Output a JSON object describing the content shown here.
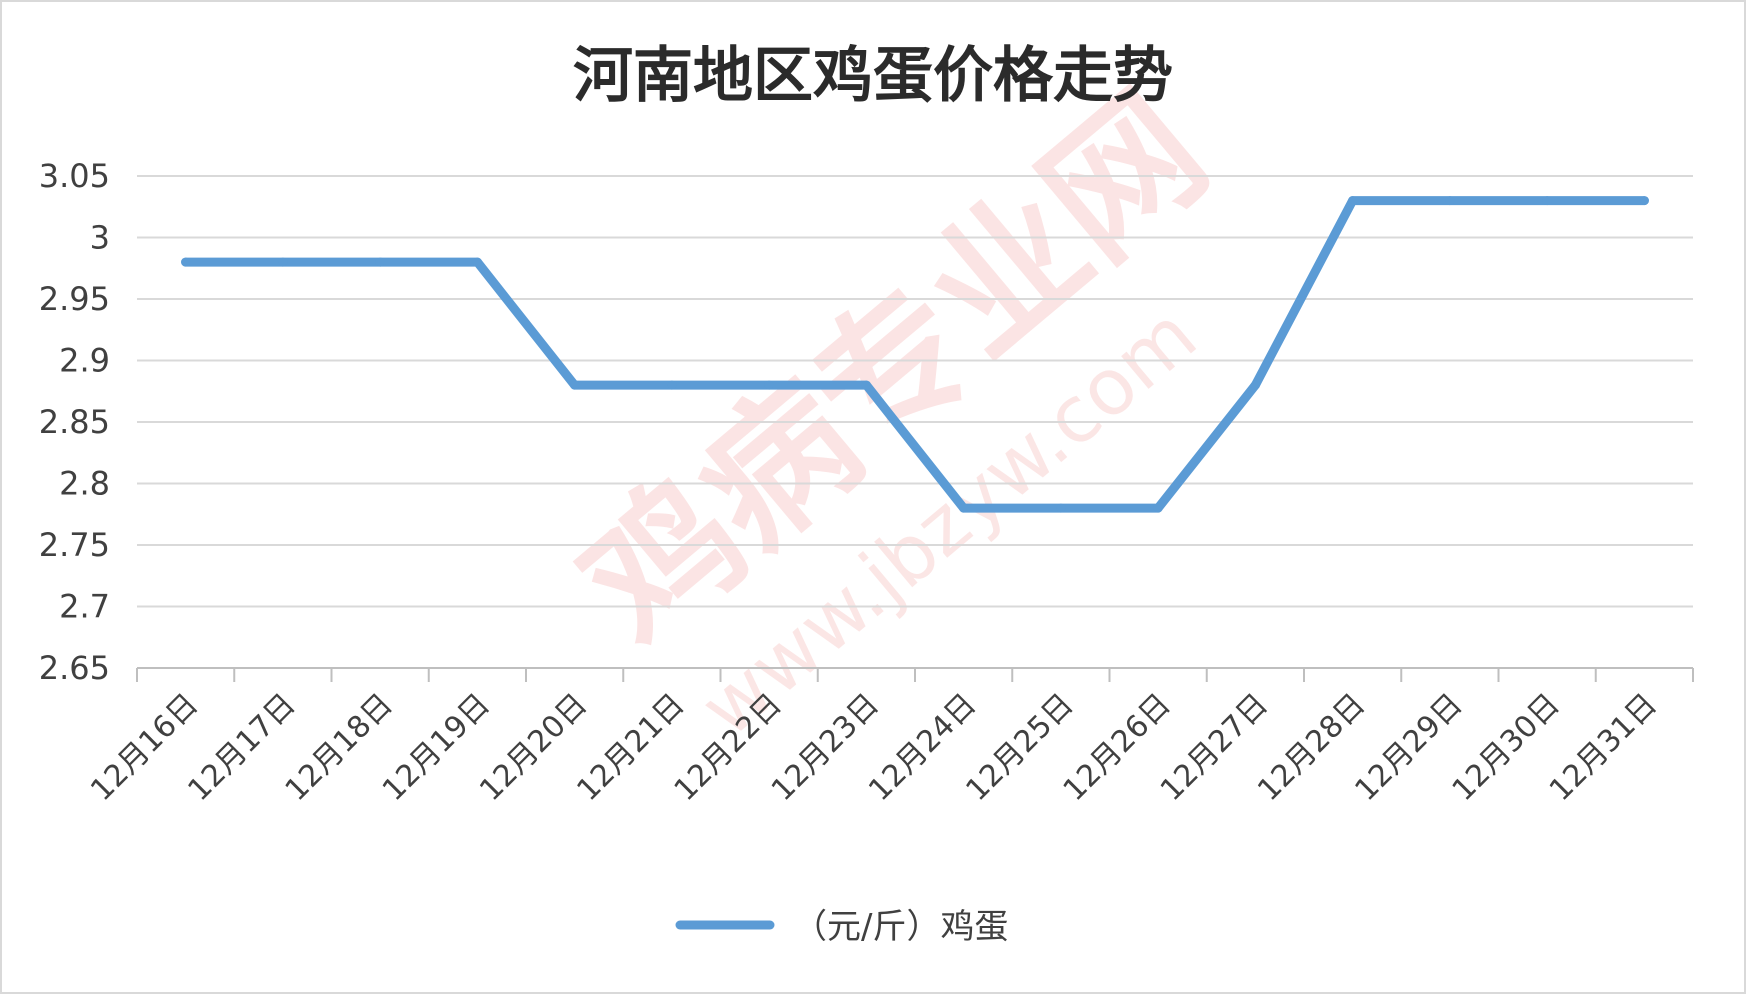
{
  "chart_data": {
    "type": "line",
    "title": "河南地区鸡蛋价格走势",
    "xlabel": "",
    "ylabel": "",
    "ylim": [
      2.65,
      3.05
    ],
    "yticks": [
      "3.05",
      "3",
      "2.95",
      "2.9",
      "2.85",
      "2.8",
      "2.75",
      "2.7",
      "2.65"
    ],
    "ytick_values": [
      3.05,
      3.0,
      2.95,
      2.9,
      2.85,
      2.8,
      2.75,
      2.7,
      2.65
    ],
    "categories": [
      "12月16日",
      "12月17日",
      "12月18日",
      "12月19日",
      "12月20日",
      "12月21日",
      "12月22日",
      "12月23日",
      "12月24日",
      "12月25日",
      "12月26日",
      "12月27日",
      "12月28日",
      "12月29日",
      "12月30日",
      "12月31日"
    ],
    "series": [
      {
        "name": "（元/斤）鸡蛋",
        "color": "#5b9bd5",
        "values": [
          2.98,
          2.98,
          2.98,
          2.98,
          2.88,
          2.88,
          2.88,
          2.88,
          2.78,
          2.78,
          2.78,
          2.88,
          3.03,
          3.03,
          3.03,
          3.03
        ]
      }
    ],
    "grid": true,
    "legend_position": "bottom"
  },
  "watermark": {
    "main_text": "鸡病专业网",
    "url_text": "www.jbzyw.com",
    "color": "#e53935"
  }
}
